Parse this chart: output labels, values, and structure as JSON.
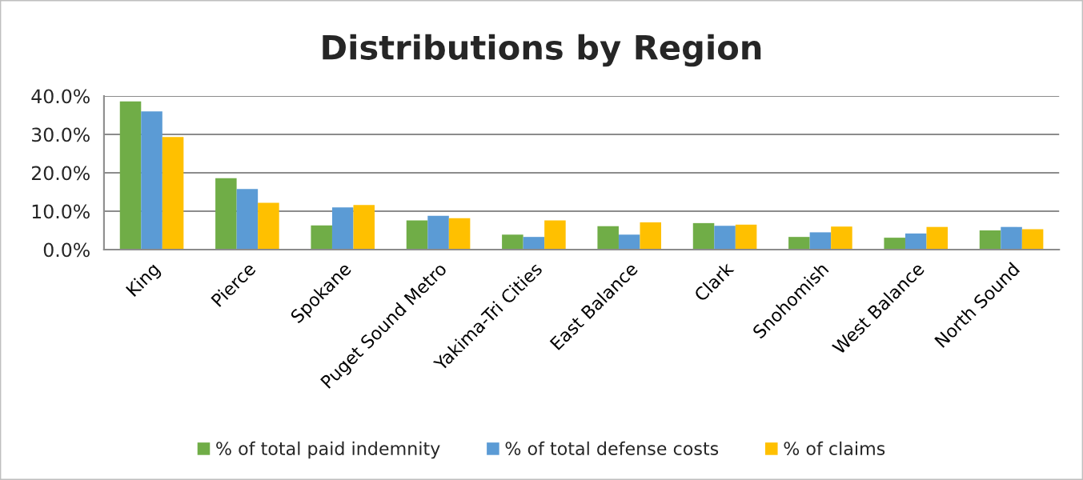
{
  "chart_data": {
    "type": "bar",
    "title": "Distributions by Region",
    "categories": [
      "King",
      "Pierce",
      "Spokane",
      "Puget Sound Metro",
      "Yakima-Tri Cities",
      "East Balance",
      "Clark",
      "Snohomish",
      "West Balance",
      "North Sound"
    ],
    "series": [
      {
        "name": "% of total paid indemnity",
        "color": "#70ad47",
        "values": [
          38.6,
          18.6,
          6.3,
          7.6,
          3.9,
          6.1,
          6.9,
          3.3,
          3.1,
          5.0
        ]
      },
      {
        "name": "% of total defense costs",
        "color": "#5b9bd5",
        "values": [
          36.0,
          15.8,
          11.0,
          8.8,
          3.3,
          3.9,
          6.2,
          4.5,
          4.2,
          5.9
        ]
      },
      {
        "name": "% of claims",
        "color": "#ffc000",
        "values": [
          29.3,
          12.2,
          11.6,
          8.2,
          7.6,
          7.1,
          6.5,
          6.0,
          5.9,
          5.3
        ]
      }
    ],
    "ylim": [
      0,
      40
    ],
    "yticks": [
      {
        "value": 0,
        "label": "0.0%"
      },
      {
        "value": 10,
        "label": "10.0%"
      },
      {
        "value": 20,
        "label": "20.0%"
      },
      {
        "value": 30,
        "label": "30.0%"
      },
      {
        "value": 40,
        "label": "40.0%"
      }
    ],
    "grid": "y",
    "legend": "bottom"
  }
}
